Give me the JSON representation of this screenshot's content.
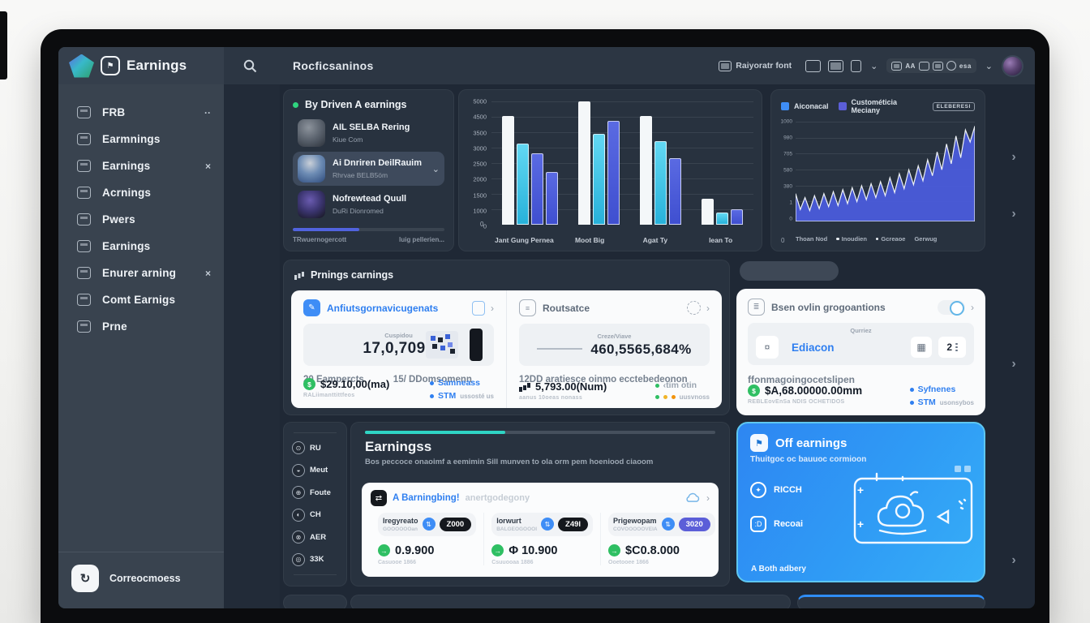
{
  "brand": {
    "title": "Earnings"
  },
  "topbar": {
    "search_text": "Rocficsaninos",
    "font_label": "Raiyoratr font",
    "cluster_label": "esa"
  },
  "sidebar": {
    "items": [
      {
        "label": "FRB",
        "trailing": "··"
      },
      {
        "label": "Earmnings",
        "trailing": ""
      },
      {
        "label": "Earnings",
        "trailing": "×"
      },
      {
        "label": "Acrnings",
        "trailing": ""
      },
      {
        "label": "Pwers",
        "trailing": ""
      },
      {
        "label": "Earnings",
        "trailing": ""
      },
      {
        "label": "Enurer arning",
        "trailing": "×"
      },
      {
        "label": "Comt Earnigs",
        "trailing": ""
      },
      {
        "label": "Prne",
        "trailing": ""
      }
    ],
    "footer_label": "Correocmoess"
  },
  "gutter": {
    "left": [
      "‹",
      "‹",
      "›",
      "‹"
    ],
    "right": [
      "›",
      "›",
      "›",
      "›"
    ]
  },
  "contacts": {
    "title": "By Driven A earnings",
    "items": [
      {
        "name": "AIL SELBA Rering",
        "subtitle": "Kiue Com",
        "selected": false
      },
      {
        "name": "Ai Dnriren DeilRauim",
        "subtitle": "Rhrvae BELB5öm",
        "selected": true
      },
      {
        "name": "Nofrewtead Quull",
        "subtitle": "DuRi Dionromed",
        "selected": false
      }
    ],
    "progress_pct": 44,
    "footer_left": "TRwuernogercott",
    "footer_right": "luig pellerien..."
  },
  "summary": {
    "title": "Prnings carnings",
    "left": {
      "title": "Anfiutsgornavicugenats",
      "box_label": "Cuspidou",
      "box_value": "17,0,7098",
      "stat_a": "20 Eampercts",
      "stat_b": "15/ DDomsomenn",
      "money": "$29.10,00(ma)",
      "money_sub": "RALiimanttittfeos",
      "bullet_a": "Samneass",
      "bullet_b": "STM",
      "bullet_b_sub": "ussosté us"
    },
    "right": {
      "title": "Routsatce",
      "box_label": "Creze/Viave",
      "box_value": "460,5565,684%",
      "stat": "12DD aratiesce oinmo ecctebedeonon",
      "money": "5,793.00(Num)",
      "money_sub": "aanus 10oeas nonass",
      "bullet_a": "‹tim otin",
      "bullet_b_sub": "uusvnoss"
    }
  },
  "proposals": {
    "title": "Bsen ovlin grogoantions",
    "box_label": "Qurriez",
    "box_name": "Ediacon",
    "box_count": "2",
    "stat": "ffonmagoingocetslipen",
    "money": "$A,68.00000.00mm",
    "money_sub": "REBLEovEnSa NDIS OCHETIDOS",
    "bullet_a": "Syfnenes",
    "bullet_b": "STM",
    "bullet_b_sub": "usonsybos"
  },
  "mini_nav": {
    "items": [
      "RU",
      "Meut",
      "Foute",
      "CH",
      "AER",
      "33K"
    ]
  },
  "detail": {
    "title": "Earningss",
    "subtitle": "Bos peccoce onaoimf a eemimin Sill munven to ola orm pem hoeniood ciaoom",
    "card_title": "A Barningbing!",
    "card_subtitle": "anertgodegony",
    "columns": [
      {
        "label": "Iregyreato",
        "sub": "GOOOOOOan",
        "pill": "Z000",
        "pill_color": "black",
        "value": "0.9.900",
        "foot": "Casuooe 1866"
      },
      {
        "label": "Iorwurt",
        "sub": "BALGEOGOOOI",
        "pill": "Z49I",
        "pill_color": "black",
        "value": "Φ 10.900",
        "foot": "Csuuooaa 1886"
      },
      {
        "label": "Prigewopam",
        "sub": "COVOOOOOVEIA",
        "pill": "3020",
        "pill_color": "indigo",
        "value": "$C0.8.000",
        "foot": "Ooetooee 1866"
      }
    ]
  },
  "off_card": {
    "title": "Off earnings",
    "subtitle": "Thuitgoc oc bauuoc cormioon",
    "row_a": "RICCH",
    "row_b": "Recoai",
    "plus": "+",
    "footer": "A Both adbery"
  },
  "area_header": {
    "legend_a": "Aiconacal",
    "legend_b": "Custométicia Meciany",
    "button": "ELEBERESI"
  },
  "colors": {
    "accent_blue": "#2f7ff0",
    "cyan": "#3cc6ea",
    "indigo": "#5b5ed8",
    "green": "#2fbf63",
    "teal": "#2fd4c4"
  },
  "chart_data": [
    {
      "type": "bar",
      "title": "By period earnings (grouped bars)",
      "ylim": [
        0,
        5000
      ],
      "yticks": [
        "5000",
        "4500",
        "3500",
        "3000",
        "2500",
        "2000",
        "1500",
        "1000",
        "0"
      ],
      "series_colors": {
        "white": "#f4f7f9",
        "cyan": "#3cc6ea",
        "blue": "#4a57d8"
      },
      "groups": [
        {
          "label": "Jant Gung Pernea",
          "bars": [
            {
              "color": "white",
              "value": 4400
            },
            {
              "color": "cyan",
              "value": 3300
            },
            {
              "color": "blue",
              "value": 2900
            },
            {
              "color": "blue",
              "value": 2150
            }
          ]
        },
        {
          "label": "Moot Big",
          "bars": [
            {
              "color": "white",
              "value": 5000
            },
            {
              "color": "cyan",
              "value": 3700
            },
            {
              "color": "blue",
              "value": 4200
            }
          ]
        },
        {
          "label": "Agat Ty",
          "bars": [
            {
              "color": "white",
              "value": 4400
            },
            {
              "color": "cyan",
              "value": 3400
            },
            {
              "color": "blue",
              "value": 2700
            }
          ]
        },
        {
          "label": "lean To",
          "bars": [
            {
              "color": "white",
              "value": 1050
            },
            {
              "color": "cyan",
              "value": 480
            },
            {
              "color": "blue",
              "value": 620
            }
          ]
        }
      ]
    },
    {
      "type": "area",
      "title": "Custométicia Meciany trend",
      "yticks": [
        "1000",
        "980",
        "705",
        "580",
        "380",
        "1",
        "0"
      ],
      "x_legend": [
        "Thoan Nod",
        "Inoudien",
        "Gcreaoe",
        "Gerwug"
      ],
      "origin_label": "0",
      "values": [
        28,
        12,
        24,
        11,
        26,
        13,
        28,
        15,
        30,
        16,
        32,
        18,
        34,
        20,
        36,
        22,
        38,
        24,
        40,
        26,
        44,
        29,
        48,
        33,
        52,
        37,
        56,
        41,
        62,
        46,
        70,
        52,
        78,
        58,
        86,
        64,
        92,
        80,
        96
      ]
    }
  ]
}
